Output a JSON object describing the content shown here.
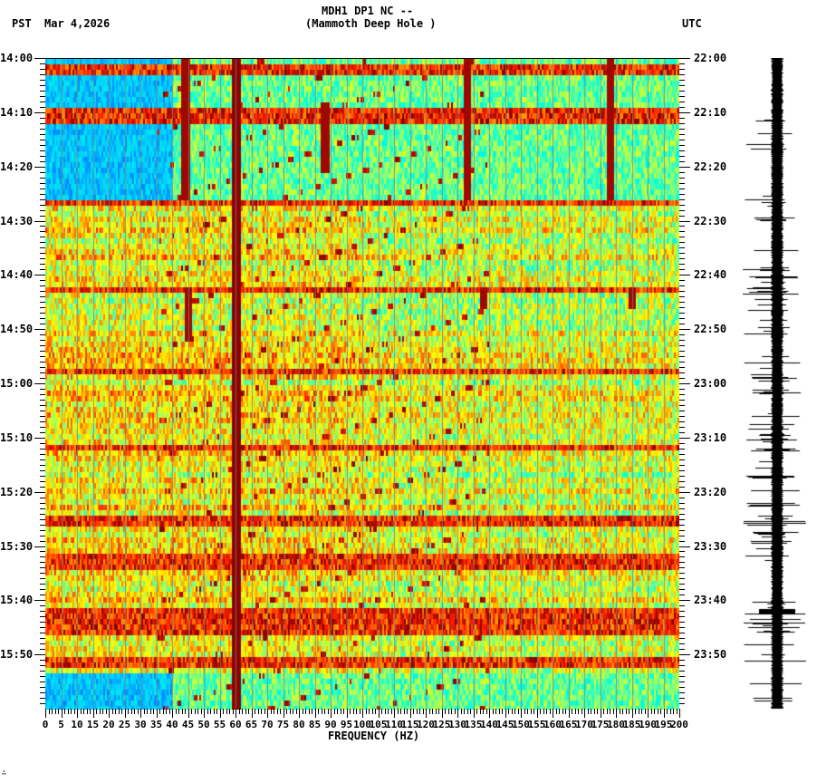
{
  "header": {
    "station_line": "MDH1 DP1 NC --",
    "station_name": "(Mammoth Deep Hole )",
    "left_timezone": "PST",
    "date": "Mar 4,2026",
    "right_timezone": "UTC"
  },
  "footer": {
    "corner_mark": "∴"
  },
  "chart_data": {
    "type": "heatmap",
    "title": "MDH1 DP1 NC -- (Mammoth Deep Hole ) spectrogram",
    "xlabel": "FREQUENCY (HZ)",
    "ylabel_left": "PST",
    "ylabel_right": "UTC",
    "xlim": [
      0,
      200
    ],
    "x_ticks": [
      0,
      5,
      10,
      15,
      20,
      25,
      30,
      35,
      40,
      45,
      50,
      55,
      60,
      65,
      70,
      75,
      80,
      85,
      90,
      95,
      100,
      105,
      110,
      115,
      120,
      125,
      130,
      135,
      140,
      145,
      150,
      155,
      160,
      165,
      170,
      175,
      180,
      185,
      190,
      195,
      200
    ],
    "y_ticks_left": [
      "14:00",
      "14:10",
      "14:20",
      "14:30",
      "14:40",
      "14:50",
      "15:00",
      "15:10",
      "15:20",
      "15:30",
      "15:40",
      "15:50"
    ],
    "y_ticks_right": [
      "22:00",
      "22:10",
      "22:20",
      "22:30",
      "22:40",
      "22:50",
      "23:00",
      "23:10",
      "23:20",
      "23:30",
      "23:40",
      "23:50"
    ],
    "time_range_minutes": 120,
    "colormap": [
      "#0000a0",
      "#0050ff",
      "#00c8ff",
      "#00ffe0",
      "#80ff80",
      "#ffff00",
      "#ffa000",
      "#ff2000",
      "#800000"
    ],
    "persistent_lines_hz": [
      60
    ],
    "gliding_tones_hz_range": [
      35,
      140
    ],
    "spikes": [
      {
        "hz": 44,
        "minutes": [
          0,
          26
        ]
      },
      {
        "hz": 88,
        "minutes": [
          8,
          21
        ]
      },
      {
        "hz": 133,
        "minutes": [
          0,
          26
        ]
      },
      {
        "hz": 178,
        "minutes": [
          0,
          26
        ]
      },
      {
        "hz": 45,
        "minutes": [
          42,
          52
        ]
      },
      {
        "hz": 138,
        "minutes": [
          42,
          46
        ]
      },
      {
        "hz": 185,
        "minutes": [
          42,
          46
        ]
      }
    ],
    "broadband_bursts_minutes": [
      1.5,
      9,
      10.5,
      26,
      42,
      57,
      71,
      85,
      92,
      93,
      102,
      104,
      105,
      111
    ],
    "low_noise_periods_minutes": [
      [
        0,
        26
      ],
      [
        113,
        120
      ]
    ],
    "waveform_trace": "seismogram panel right of spectrogram, amplitude bursts at 22:08, 22:25-22:30, 22:40-23:35, 23:40"
  }
}
